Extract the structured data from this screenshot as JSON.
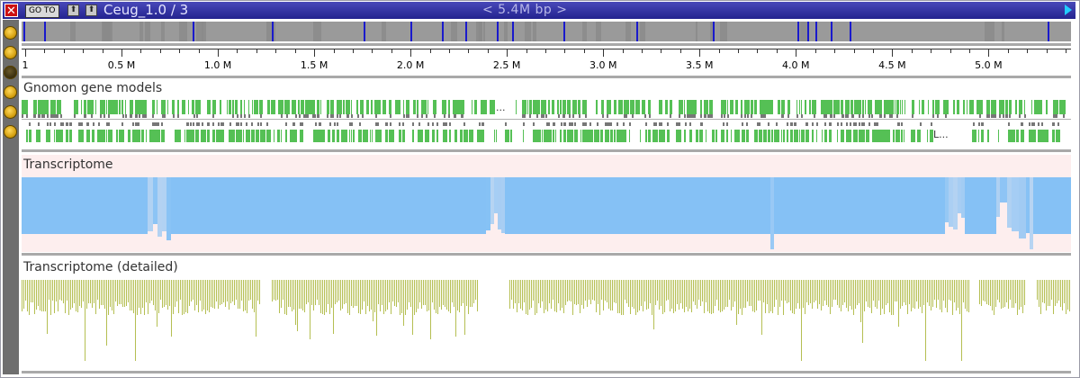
{
  "title_bar": {
    "close_label": "✕",
    "goto_label": "GO TO",
    "sequence_title": "Ceug_1.0 / 3",
    "range_text": "<  5.4M bp  >",
    "colors": {
      "bar": "#2a2a98",
      "close": "#cc1111",
      "arrow": "#22ccff"
    }
  },
  "left_toolbar": {
    "icons": [
      "settings-circle-icon",
      "settings-circle-icon",
      "dark-circle-icon",
      "settings-circle-icon",
      "settings-circle-icon",
      "settings-circle-icon"
    ]
  },
  "ruler": {
    "labels": [
      "1",
      "0.5 M",
      "1.0 M",
      "1.5 M",
      "2.0 M",
      "2.5 M",
      "3.0 M",
      "3.5 M",
      "4.0 M",
      "4.5 M",
      "5.0 M"
    ],
    "ticks_bp": [
      1,
      500000,
      1000000,
      1500000,
      2000000,
      2500000,
      3000000,
      3500000,
      4000000,
      4500000,
      5000000
    ],
    "total_bp": 5400000
  },
  "tracks": {
    "gene_models": {
      "title": "Gnomon gene models",
      "row1_more": "...",
      "row2_more": "L...",
      "color": "#55c055"
    },
    "transcriptome": {
      "title": "Transcriptome",
      "color": "#85c1f5",
      "background": "#fdeeee"
    },
    "transcriptome_detailed": {
      "title": "Transcriptome (detailed)",
      "color": "#b5bf52"
    }
  }
}
